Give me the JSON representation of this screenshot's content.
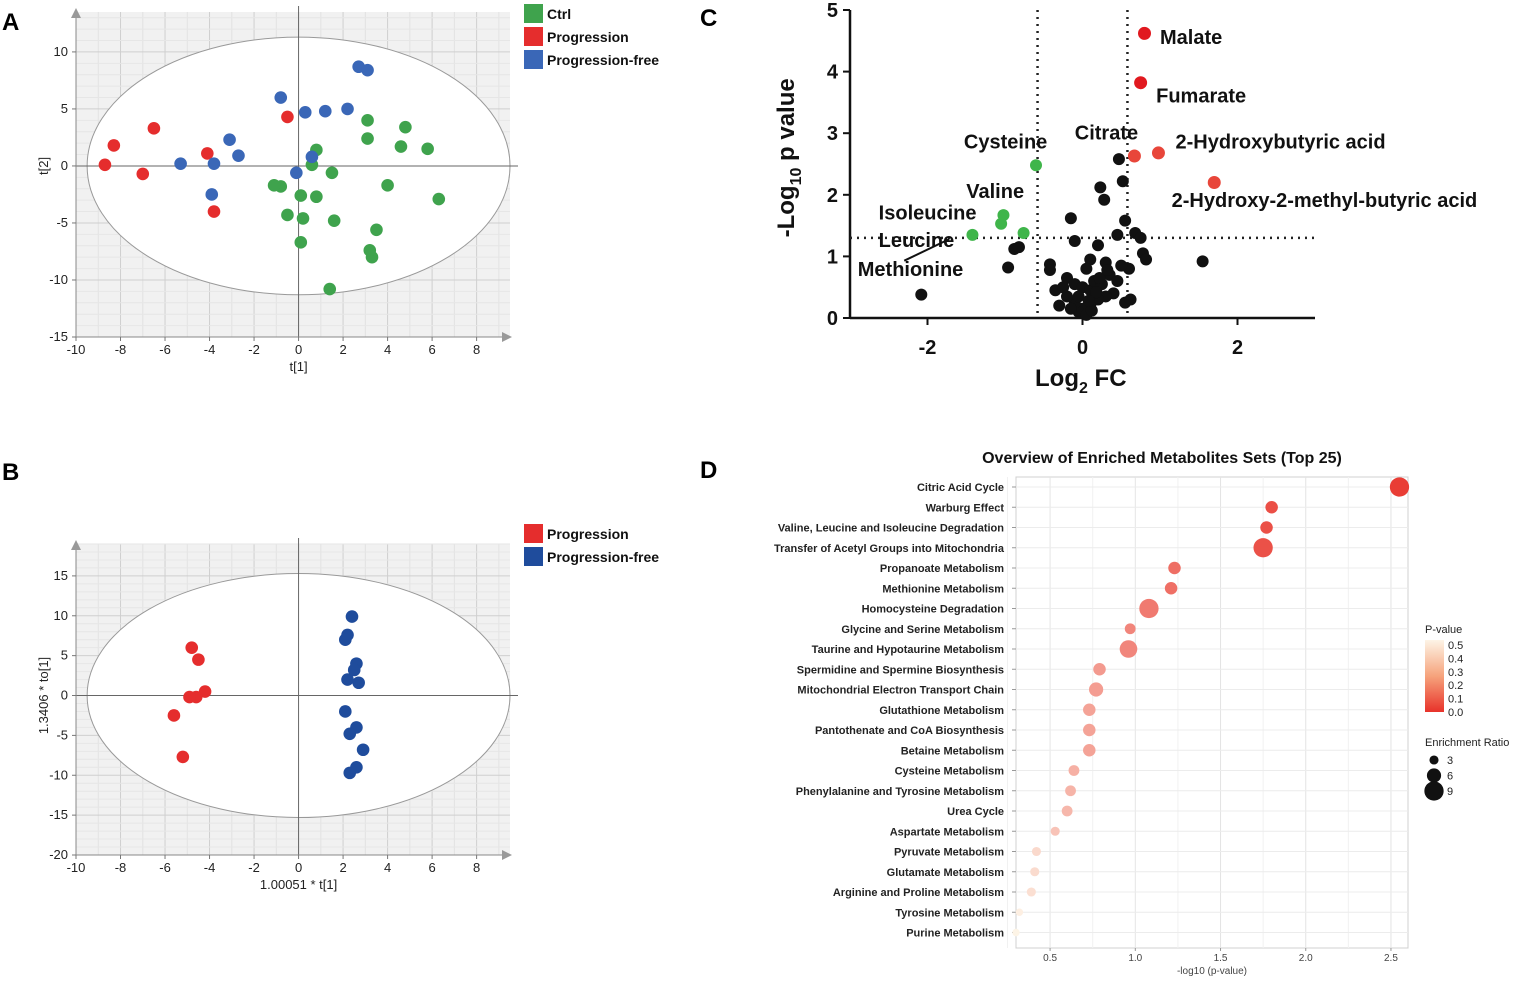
{
  "chart_data": [
    {
      "panel": "A",
      "type": "scatter",
      "xlabel": "t[1]",
      "ylabel": "t[2]",
      "xlim": [
        -10,
        9.5
      ],
      "ylim": [
        -15,
        13.5
      ],
      "xticks": [
        -10,
        -8,
        -6,
        -4,
        -2,
        0,
        2,
        4,
        6,
        8
      ],
      "yticks": [
        -15,
        -10,
        -5,
        0,
        5,
        10
      ],
      "ellipse": {
        "rx": 9.5,
        "ry": 11.3
      },
      "series": [
        {
          "name": "Ctrl",
          "color": "#3fa34d",
          "points": [
            [
              3.1,
              4.0
            ],
            [
              3.1,
              2.4
            ],
            [
              4.8,
              3.4
            ],
            [
              4.6,
              1.7
            ],
            [
              5.8,
              1.5
            ],
            [
              6.3,
              -2.9
            ],
            [
              4.0,
              -1.7
            ],
            [
              3.5,
              -5.6
            ],
            [
              3.3,
              -8.0
            ],
            [
              3.2,
              -7.4
            ],
            [
              1.4,
              -10.8
            ],
            [
              1.6,
              -4.8
            ],
            [
              1.5,
              -0.6
            ],
            [
              0.8,
              1.4
            ],
            [
              0.6,
              0.1
            ],
            [
              0.8,
              -2.7
            ],
            [
              0.1,
              -2.6
            ],
            [
              0.2,
              -4.6
            ],
            [
              0.1,
              -6.7
            ],
            [
              -0.5,
              -4.3
            ],
            [
              -0.8,
              -1.8
            ],
            [
              -1.1,
              -1.7
            ]
          ]
        },
        {
          "name": "Progression",
          "color": "#e52d2d",
          "points": [
            [
              -8.7,
              0.1
            ],
            [
              -8.3,
              1.8
            ],
            [
              -7.0,
              -0.7
            ],
            [
              -6.5,
              3.3
            ],
            [
              -4.1,
              1.1
            ],
            [
              -3.8,
              -4.0
            ],
            [
              -0.5,
              4.3
            ]
          ]
        },
        {
          "name": "Progression-free",
          "color": "#3a67b7",
          "points": [
            [
              -5.3,
              0.2
            ],
            [
              -3.8,
              0.2
            ],
            [
              -3.9,
              -2.5
            ],
            [
              -3.1,
              2.3
            ],
            [
              -2.7,
              0.9
            ],
            [
              -0.8,
              6.0
            ],
            [
              0.3,
              4.7
            ],
            [
              1.2,
              4.8
            ],
            [
              2.2,
              5.0
            ],
            [
              2.7,
              8.7
            ],
            [
              3.1,
              8.4
            ],
            [
              0.6,
              0.8
            ],
            [
              -0.1,
              -0.6
            ]
          ]
        }
      ]
    },
    {
      "panel": "B",
      "type": "scatter",
      "xlabel": "1.00051 * t[1]",
      "ylabel": "1.3406 * to[1]",
      "xlim": [
        -10,
        9.5
      ],
      "ylim": [
        -20,
        19
      ],
      "xticks": [
        -10,
        -8,
        -6,
        -4,
        -2,
        0,
        2,
        4,
        6,
        8
      ],
      "yticks": [
        -20,
        -15,
        -10,
        -5,
        0,
        5,
        10,
        15
      ],
      "ellipse": {
        "rx": 9.5,
        "ry": 15.3
      },
      "series": [
        {
          "name": "Progression",
          "color": "#e52d2d",
          "points": [
            [
              -4.8,
              6.0
            ],
            [
              -4.5,
              4.5
            ],
            [
              -4.2,
              0.5
            ],
            [
              -4.6,
              -0.2
            ],
            [
              -4.9,
              -0.2
            ],
            [
              -5.6,
              -2.5
            ],
            [
              -5.2,
              -7.7
            ]
          ]
        },
        {
          "name": "Progression-free",
          "color": "#1f4c9c",
          "points": [
            [
              2.4,
              9.9
            ],
            [
              2.2,
              7.6
            ],
            [
              2.1,
              7.0
            ],
            [
              2.6,
              4.0
            ],
            [
              2.5,
              3.2
            ],
            [
              2.2,
              2.0
            ],
            [
              2.7,
              1.6
            ],
            [
              2.1,
              -2.0
            ],
            [
              2.6,
              -4.0
            ],
            [
              2.3,
              -4.8
            ],
            [
              2.9,
              -6.8
            ],
            [
              2.6,
              -9.0
            ],
            [
              2.3,
              -9.7
            ]
          ]
        }
      ]
    },
    {
      "panel": "C",
      "type": "scatter",
      "xlabel_main": "Log",
      "xlabel_sub": "2",
      "xlabel_tail": " FC",
      "ylabel_main": "-Log",
      "ylabel_sub": "10",
      "ylabel_tail": " p value",
      "xlim": [
        -3,
        3
      ],
      "ylim": [
        0,
        5
      ],
      "xticks": [
        -2,
        0,
        2
      ],
      "yticks": [
        0,
        1,
        2,
        3,
        4,
        5
      ],
      "thresholds": {
        "x": [
          -0.58,
          0.58
        ],
        "y": 1.3
      },
      "red": [
        [
          0.8,
          4.62
        ],
        [
          0.75,
          3.82
        ],
        [
          0.67,
          2.63
        ],
        [
          0.98,
          2.68
        ],
        [
          1.7,
          2.2
        ]
      ],
      "green": [
        [
          -0.6,
          2.48
        ],
        [
          -1.02,
          1.67
        ],
        [
          -1.05,
          1.53
        ],
        [
          -0.76,
          1.38
        ],
        [
          -1.42,
          1.35
        ]
      ],
      "black": [
        [
          -2.08,
          0.38
        ],
        [
          1.55,
          0.92
        ],
        [
          -0.96,
          0.82
        ],
        [
          -0.88,
          1.12
        ],
        [
          -0.82,
          1.15
        ],
        [
          -0.42,
          0.87
        ],
        [
          -0.42,
          0.78
        ],
        [
          0.47,
          2.58
        ],
        [
          0.52,
          2.22
        ],
        [
          0.23,
          2.12
        ],
        [
          0.28,
          1.92
        ],
        [
          0.55,
          1.58
        ],
        [
          -0.15,
          1.62
        ],
        [
          -0.1,
          1.25
        ],
        [
          0.2,
          1.18
        ],
        [
          0.68,
          1.38
        ],
        [
          0.75,
          1.3
        ],
        [
          0.45,
          1.35
        ],
        [
          0.78,
          1.05
        ],
        [
          0.82,
          0.95
        ],
        [
          0.6,
          0.8
        ],
        [
          0.5,
          0.85
        ],
        [
          0.3,
          0.9
        ],
        [
          0.1,
          0.95
        ],
        [
          0.05,
          0.8
        ],
        [
          -0.2,
          0.65
        ],
        [
          -0.1,
          0.55
        ],
        [
          0.0,
          0.5
        ],
        [
          0.1,
          0.45
        ],
        [
          0.15,
          0.6
        ],
        [
          0.25,
          0.55
        ],
        [
          0.35,
          0.7
        ],
        [
          0.45,
          0.6
        ],
        [
          0.4,
          0.4
        ],
        [
          0.3,
          0.35
        ],
        [
          0.2,
          0.3
        ],
        [
          0.1,
          0.2
        ],
        [
          0.0,
          0.15
        ],
        [
          -0.05,
          0.1
        ],
        [
          0.05,
          0.05
        ],
        [
          -0.1,
          0.25
        ],
        [
          -0.2,
          0.35
        ],
        [
          -0.3,
          0.2
        ],
        [
          -0.35,
          0.45
        ],
        [
          -0.25,
          0.5
        ],
        [
          0.12,
          0.12
        ],
        [
          0.22,
          0.65
        ],
        [
          0.32,
          0.78
        ],
        [
          -0.05,
          0.35
        ],
        [
          0.55,
          0.25
        ],
        [
          -0.15,
          0.15
        ],
        [
          0.62,
          0.3
        ],
        [
          0.08,
          0.28
        ],
        [
          0.18,
          0.42
        ]
      ],
      "annotations": [
        {
          "text": "Malate",
          "x": 1.0,
          "y": 4.45
        },
        {
          "text": "Fumarate",
          "x": 0.95,
          "y": 3.5
        },
        {
          "text": "Citrate",
          "x": -0.1,
          "y": 2.9
        },
        {
          "text": "Cysteine",
          "x": -1.53,
          "y": 2.75
        },
        {
          "text": "2-Hydroxybutyric acid",
          "x": 1.2,
          "y": 2.75
        },
        {
          "text": "Valine",
          "x": -1.5,
          "y": 1.95
        },
        {
          "text": "2-Hydroxy-2-methyl-butyric acid",
          "x": 1.15,
          "y": 1.8
        },
        {
          "text": "Isoleucine",
          "x": -2.63,
          "y": 1.6
        },
        {
          "text": "Leucine",
          "x": -2.63,
          "y": 1.15
        },
        {
          "text": "Methionine",
          "x": -2.9,
          "y": 0.68
        }
      ]
    },
    {
      "panel": "D",
      "type": "scatter",
      "title": "Overview of Enriched Metabolites Sets (Top 25)",
      "xlabel": "-log10 (p-value)",
      "xlim": [
        0.3,
        2.6
      ],
      "xticks": [
        0.5,
        1.0,
        1.5,
        2.0,
        2.5
      ],
      "xtick_labels": [
        "0.5",
        "1.0",
        "1.5",
        "2.0",
        "2.5"
      ],
      "categories": [
        "Citric Acid Cycle",
        "Warburg Effect",
        "Valine, Leucine and Isoleucine Degradation",
        "Transfer of Acetyl Groups into Mitochondria",
        "Propanoate Metabolism",
        "Methionine Metabolism",
        "Homocysteine Degradation",
        "Glycine and Serine Metabolism",
        "Taurine and Hypotaurine Metabolism",
        "Spermidine and Spermine Biosynthesis",
        "Mitochondrial Electron Transport Chain",
        "Glutathione Metabolism",
        "Pantothenate and CoA Biosynthesis",
        "Betaine Metabolism",
        "Cysteine Metabolism",
        "Phenylalanine and Tyrosine Metabolism",
        "Urea Cycle",
        "Aspartate Metabolism",
        "Pyruvate Metabolism",
        "Glutamate Metabolism",
        "Arginine and Proline Metabolism",
        "Tyrosine Metabolism",
        "Purine Metabolism"
      ],
      "neglog10p": [
        2.55,
        1.8,
        1.77,
        1.75,
        1.23,
        1.21,
        1.08,
        0.97,
        0.96,
        0.79,
        0.77,
        0.73,
        0.73,
        0.73,
        0.64,
        0.62,
        0.6,
        0.53,
        0.42,
        0.41,
        0.39,
        0.32,
        0.3
      ],
      "enrichment_ratio": [
        9,
        5,
        5,
        9,
        5,
        5,
        9,
        4,
        8,
        5,
        6,
        5,
        5,
        5,
        4,
        4,
        4,
        3,
        3,
        3,
        3,
        2,
        2
      ],
      "legend_pvalue": {
        "title": "P-value",
        "ticks": [
          "0.5",
          "0.4",
          "0.3",
          "0.2",
          "0.1",
          "0.0"
        ],
        "low_color": "#e8322a",
        "high_color": "#fdf4e6"
      },
      "legend_size": {
        "title": "Enrichment Ratio",
        "values": [
          "3",
          "6",
          "9"
        ]
      }
    }
  ],
  "labels": {
    "A": "A",
    "B": "B",
    "C": "C",
    "D": "D"
  }
}
